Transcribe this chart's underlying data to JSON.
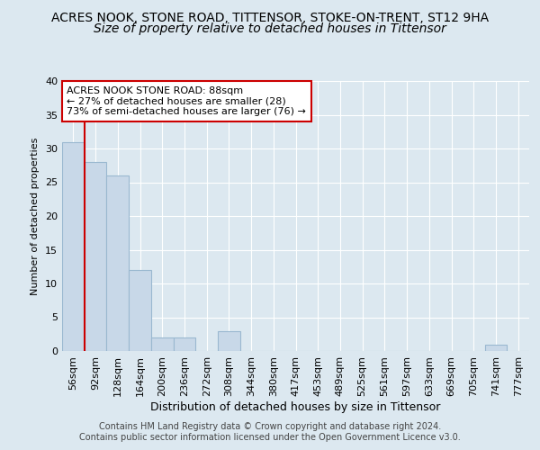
{
  "title1": "ACRES NOOK, STONE ROAD, TITTENSOR, STOKE-ON-TRENT, ST12 9HA",
  "title2": "Size of property relative to detached houses in Tittensor",
  "xlabel": "Distribution of detached houses by size in Tittensor",
  "ylabel": "Number of detached properties",
  "categories": [
    "56sqm",
    "92sqm",
    "128sqm",
    "164sqm",
    "200sqm",
    "236sqm",
    "272sqm",
    "308sqm",
    "344sqm",
    "380sqm",
    "417sqm",
    "453sqm",
    "489sqm",
    "525sqm",
    "561sqm",
    "597sqm",
    "633sqm",
    "669sqm",
    "705sqm",
    "741sqm",
    "777sqm"
  ],
  "values": [
    31,
    28,
    26,
    12,
    2,
    2,
    0,
    3,
    0,
    0,
    0,
    0,
    0,
    0,
    0,
    0,
    0,
    0,
    0,
    1,
    0
  ],
  "bar_color": "#c8d8e8",
  "bar_edge_color": "#9ab8d0",
  "bar_edge_width": 0.8,
  "vline_color": "#cc0000",
  "vline_x": 1.0,
  "ylim": [
    0,
    40
  ],
  "yticks": [
    0,
    5,
    10,
    15,
    20,
    25,
    30,
    35,
    40
  ],
  "annotation_text": "ACRES NOOK STONE ROAD: 88sqm\n← 27% of detached houses are smaller (28)\n73% of semi-detached houses are larger (76) →",
  "annotation_box_edge_color": "#cc0000",
  "annotation_facecolor": "#ffffff",
  "footer_line1": "Contains HM Land Registry data © Crown copyright and database right 2024.",
  "footer_line2": "Contains public sector information licensed under the Open Government Licence v3.0.",
  "plot_bg_color": "#dce8f0",
  "fig_bg_color": "#dce8f0",
  "grid_color": "#ffffff",
  "title1_fontsize": 10,
  "title2_fontsize": 10,
  "xlabel_fontsize": 9,
  "ylabel_fontsize": 8,
  "tick_fontsize": 8,
  "footer_fontsize": 7,
  "ann_fontsize": 8
}
